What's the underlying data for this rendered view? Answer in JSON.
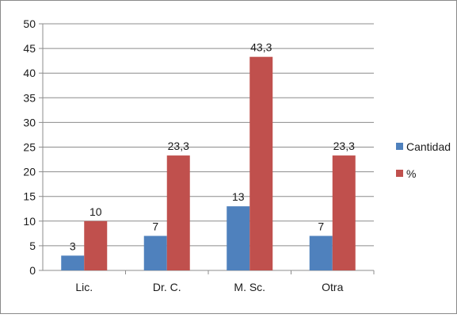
{
  "chart_data": {
    "type": "bar",
    "categories": [
      "Lic.",
      "Dr. C.",
      "M. Sc.",
      "Otra"
    ],
    "series": [
      {
        "name": "Cantidad",
        "values": [
          3,
          7,
          13,
          7
        ],
        "labels": [
          "3",
          "7",
          "13",
          "7"
        ],
        "color": "#4f81bd"
      },
      {
        "name": "%",
        "values": [
          10,
          23.3,
          43.3,
          23.3
        ],
        "labels": [
          "10",
          "23,3",
          "43,3",
          "23,3"
        ],
        "color": "#c0504d"
      }
    ],
    "ylim": [
      0,
      50
    ],
    "yticks": [
      0,
      5,
      10,
      15,
      20,
      25,
      30,
      35,
      40,
      45,
      50
    ],
    "ytick_labels": [
      "0",
      "5",
      "10",
      "15",
      "20",
      "25",
      "30",
      "35",
      "40",
      "45",
      "50"
    ],
    "grid": true,
    "legend": "right",
    "title": "",
    "xlabel": "",
    "ylabel": ""
  }
}
